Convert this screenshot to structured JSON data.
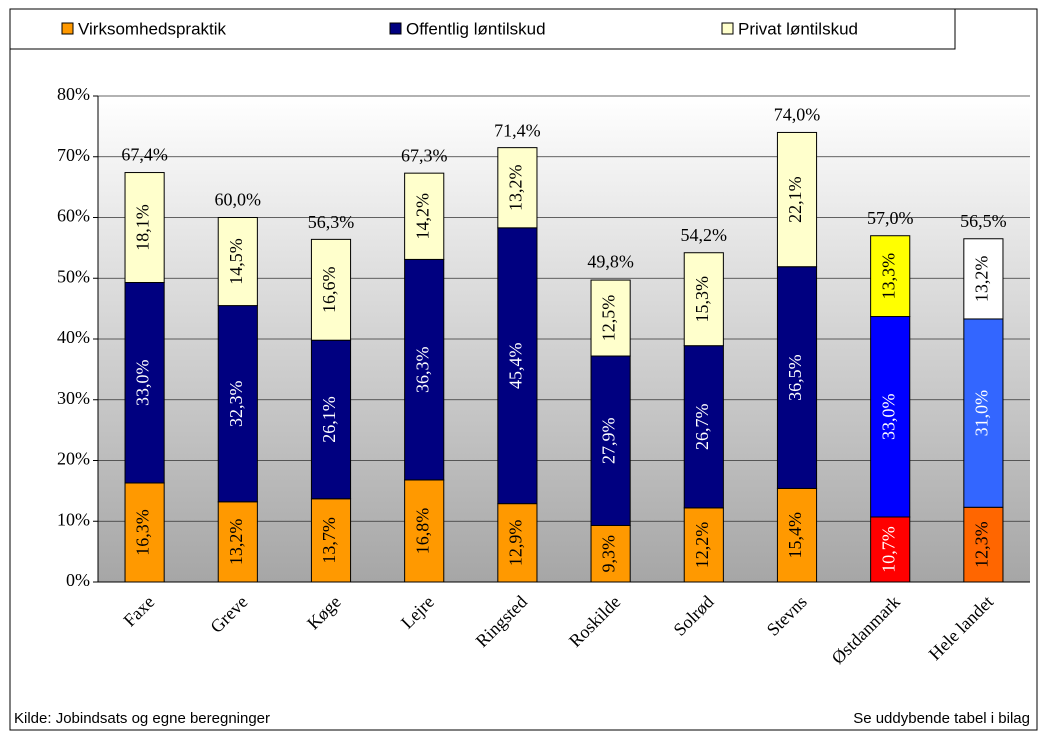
{
  "chart_data": {
    "type": "stacked_bar",
    "categories": [
      "Faxe",
      "Greve",
      "Køge",
      "Lejre",
      "Ringsted",
      "Roskilde",
      "Solrød",
      "Stevns",
      "Østdanmark",
      "Hele landet"
    ],
    "series": [
      {
        "name": "Virksomhedspraktik",
        "color": "#ff9900",
        "colors": [
          "#ff9900",
          "#ff9900",
          "#ff9900",
          "#ff9900",
          "#ff9900",
          "#ff9900",
          "#ff9900",
          "#ff9900",
          "#ff0000",
          "#ff6600"
        ],
        "values": [
          16.3,
          13.2,
          13.7,
          16.8,
          12.9,
          9.3,
          12.2,
          15.4,
          10.7,
          12.3
        ],
        "value_labels": [
          "16,3%",
          "13,2%",
          "13,7%",
          "16,8%",
          "12,9%",
          "9,3%",
          "12,2%",
          "15,4%",
          "10,7%",
          "12,3%"
        ]
      },
      {
        "name": "Offentlig løntilskud",
        "color": "#000080",
        "colors": [
          "#000080",
          "#000080",
          "#000080",
          "#000080",
          "#000080",
          "#000080",
          "#000080",
          "#000080",
          "#0000ff",
          "#3366ff"
        ],
        "values": [
          33.0,
          32.3,
          26.1,
          36.3,
          45.4,
          27.9,
          26.7,
          36.5,
          33.0,
          31.0
        ],
        "value_labels": [
          "33,0%",
          "32,3%",
          "26,1%",
          "36,3%",
          "45,4%",
          "27,9%",
          "26,7%",
          "36,5%",
          "33,0%",
          "31,0%"
        ]
      },
      {
        "name": "Privat løntilskud",
        "color": "#ffffcc",
        "colors": [
          "#ffffcc",
          "#ffffcc",
          "#ffffcc",
          "#ffffcc",
          "#ffffcc",
          "#ffffcc",
          "#ffffcc",
          "#ffffcc",
          "#ffff00",
          "#ffffff"
        ],
        "values": [
          18.1,
          14.5,
          16.6,
          14.2,
          13.2,
          12.5,
          15.3,
          22.1,
          13.3,
          13.2
        ],
        "value_labels": [
          "18,1%",
          "14,5%",
          "16,6%",
          "14,2%",
          "13,2%",
          "12,5%",
          "15,3%",
          "22,1%",
          "13,3%",
          "13,2%"
        ]
      }
    ],
    "totals": [
      67.4,
      60.0,
      56.3,
      67.3,
      71.4,
      49.8,
      54.2,
      74.0,
      57.0,
      56.5
    ],
    "total_labels": [
      "67,4%",
      "60,0%",
      "56,3%",
      "67,3%",
      "71,4%",
      "49,8%",
      "54,2%",
      "74,0%",
      "57,0%",
      "56,5%"
    ],
    "ylim": [
      0,
      80
    ],
    "yticks": [
      {
        "value": 0,
        "label": "0%"
      },
      {
        "value": 10,
        "label": "10%"
      },
      {
        "value": 20,
        "label": "20%"
      },
      {
        "value": 30,
        "label": "30%"
      },
      {
        "value": 40,
        "label": "40%"
      },
      {
        "value": 50,
        "label": "50%"
      },
      {
        "value": 60,
        "label": "60%"
      },
      {
        "value": 70,
        "label": "70%"
      },
      {
        "value": 80,
        "label": "80%"
      }
    ],
    "grid": true,
    "source": "Kilde: Jobindsats og egne beregninger",
    "note": "Se uddybende tabel i bilag"
  }
}
